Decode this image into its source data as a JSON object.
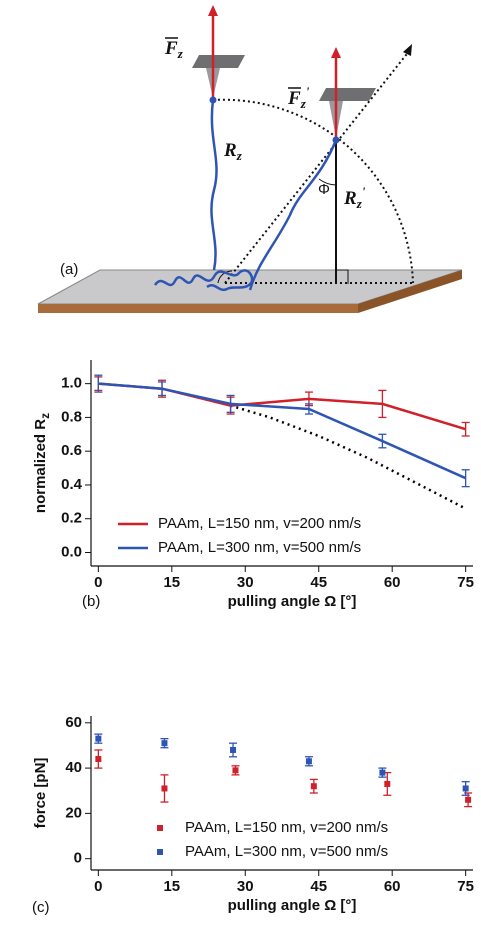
{
  "diagram": {
    "panel_label": "(a)",
    "force_left": {
      "symbol": "F",
      "sub": "z"
    },
    "force_right": {
      "symbol": "F",
      "sub": "z",
      "prime": "'"
    },
    "extension_left": {
      "symbol": "R",
      "sub": "z"
    },
    "extension_right": {
      "symbol": "R",
      "sub": "z",
      "prime": "'"
    },
    "angle": "Φ"
  },
  "chart_data": [
    {
      "type": "line",
      "panel_label": "(b)",
      "y_label": {
        "text": "normalized R",
        "sub": "z"
      },
      "x_label": "pulling angle Ω [°]",
      "xlim": [
        -1.5,
        76.5
      ],
      "xticks": [
        0,
        15,
        30,
        45,
        60,
        75
      ],
      "ylim": [
        -0.08,
        1.14
      ],
      "yticks": [
        {
          "value": 0,
          "label": "0.0"
        },
        0.2,
        0.4,
        0.6,
        0.8,
        {
          "value": 1,
          "label": "1.0"
        }
      ],
      "legend": "lower left",
      "series": [
        {
          "name": "PAAm, L=150 nm, v=200 nm/s",
          "color": "#d0202a",
          "x": [
            0,
            13,
            27,
            43,
            58,
            75
          ],
          "values": [
            1.0,
            0.97,
            0.87,
            0.91,
            0.88,
            0.73
          ],
          "errors": [
            0.04,
            0.05,
            0.05,
            0.04,
            0.08,
            0.04
          ]
        },
        {
          "name": "PAAm, L=300 nm, v=500 nm/s",
          "color": "#2f55b4",
          "x": [
            0,
            13,
            27,
            43,
            58,
            75
          ],
          "values": [
            1.0,
            0.97,
            0.88,
            0.85,
            0.66,
            0.44
          ],
          "errors": [
            0.05,
            0.04,
            0.05,
            0.03,
            0.04,
            0.05
          ]
        }
      ],
      "reference_curve": {
        "color": "#000000",
        "x": [
          27,
          35,
          45,
          55,
          65,
          75
        ],
        "values": [
          0.87,
          0.8,
          0.69,
          0.56,
          0.41,
          0.26
        ]
      }
    },
    {
      "type": "scatter",
      "panel_label": "(c)",
      "y_label": "force [pN]",
      "x_label": "pulling angle Ω [°]",
      "xlim": [
        -1.5,
        76.5
      ],
      "xticks": [
        0,
        15,
        30,
        45,
        60,
        75
      ],
      "ylim": [
        -5,
        63
      ],
      "yticks": [
        0,
        20,
        40,
        60
      ],
      "legend": "lower left",
      "series": [
        {
          "name": "PAAm, L=150 nm, v=200 nm/s",
          "color": "#d0202a",
          "x": [
            0,
            13.5,
            28,
            44,
            59,
            75.5
          ],
          "values": [
            44,
            31,
            39,
            32,
            33,
            26
          ],
          "errors": [
            4,
            6,
            2,
            3,
            5,
            3
          ]
        },
        {
          "name": "PAAm, L=300 nm, v=500 nm/s",
          "color": "#2f55b4",
          "x": [
            0,
            13.5,
            27.5,
            43,
            58,
            75
          ],
          "values": [
            53,
            51,
            48,
            43,
            38,
            31
          ],
          "errors": [
            2,
            2,
            3,
            2,
            2,
            3
          ]
        }
      ]
    }
  ]
}
